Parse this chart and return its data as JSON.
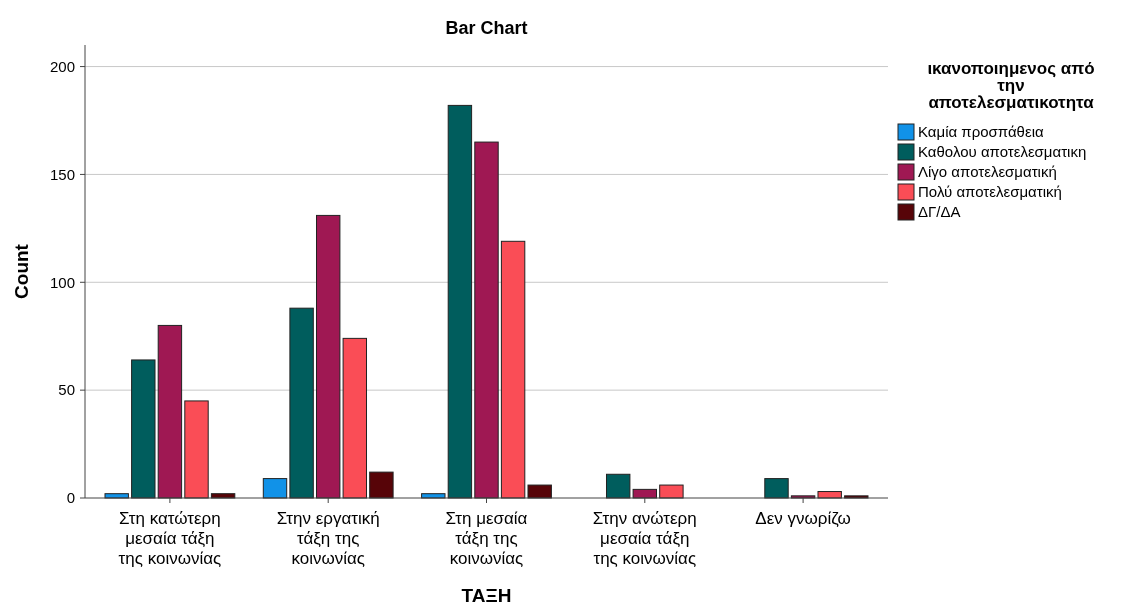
{
  "chart_data": {
    "type": "bar",
    "title": "Bar Chart",
    "xlabel": "ΤΑΞΗ",
    "ylabel": "Count",
    "legend_title": "ικανοποιημενος από την αποτελεσματικοτητα",
    "categories": [
      "Στη κατώτερη μεσαία τάξη της κοινωνίας",
      "Στην εργατική τάξη της κοινωνίας",
      "Στη μεσαία τάξη της κοινωνίας",
      "Στην ανώτερη μεσαία τάξη της κοινωνίας",
      "Δεν γνωρίζω"
    ],
    "series": [
      {
        "name": "Καμία προσπάθεια",
        "color": "#1192e8",
        "values": [
          2,
          9,
          2,
          null,
          null
        ]
      },
      {
        "name": "Καθολου αποτελεσματικη",
        "color": "#005d5d",
        "values": [
          64,
          88,
          182,
          11,
          9
        ]
      },
      {
        "name": "Λίγο αποτελεσματική",
        "color": "#9f1853",
        "values": [
          80,
          131,
          165,
          4,
          1
        ]
      },
      {
        "name": "Πολύ αποτελεσματική",
        "color": "#fa4d56",
        "values": [
          45,
          74,
          119,
          6,
          3
        ]
      },
      {
        "name": "ΔΓ/ΔΑ",
        "color": "#570408",
        "values": [
          2,
          12,
          6,
          null,
          1
        ]
      }
    ],
    "ylim": [
      0,
      210
    ],
    "yticks": [
      0,
      50,
      100,
      150,
      200
    ],
    "grid": "y",
    "legend": "right"
  }
}
